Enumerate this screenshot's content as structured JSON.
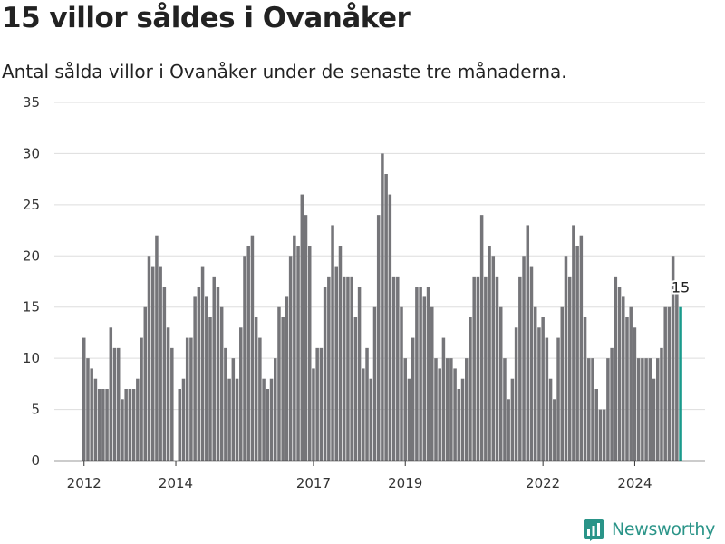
{
  "title": "15 villor såldes i Ovanåker",
  "subtitle": "Antal sålda villor i Ovanåker under de senaste tre månaderna.",
  "brand": "Newsworthy",
  "colors": {
    "bar": "#757579",
    "highlight": "#1a9a8c",
    "brand": "#2a9488",
    "grid": "#dddddd"
  },
  "chart_data": {
    "type": "bar",
    "title": "15 villor såldes i Ovanåker",
    "subtitle": "Antal sålda villor i Ovanåker under de senaste tre månaderna.",
    "xlabel": "",
    "ylabel": "",
    "ylim": [
      0,
      35
    ],
    "yticks": [
      0,
      5,
      10,
      15,
      20,
      25,
      30,
      35
    ],
    "x_ticks": [
      "2012",
      "2014",
      "2017",
      "2019",
      "2022",
      "2024"
    ],
    "grid": "horizontal",
    "start_month": "2012-01",
    "values": [
      12,
      10,
      9,
      8,
      7,
      7,
      7,
      13,
      11,
      11,
      6,
      7,
      7,
      7,
      8,
      12,
      15,
      20,
      19,
      22,
      19,
      17,
      13,
      11,
      null,
      7,
      8,
      12,
      12,
      16,
      17,
      19,
      16,
      14,
      18,
      17,
      15,
      11,
      8,
      10,
      8,
      13,
      20,
      21,
      22,
      14,
      12,
      8,
      7,
      8,
      10,
      15,
      14,
      16,
      20,
      22,
      21,
      26,
      24,
      21,
      9,
      11,
      11,
      17,
      18,
      23,
      19,
      21,
      18,
      18,
      18,
      14,
      17,
      9,
      11,
      8,
      15,
      24,
      30,
      28,
      26,
      18,
      18,
      15,
      10,
      8,
      12,
      17,
      17,
      16,
      17,
      15,
      10,
      9,
      12,
      10,
      10,
      9,
      7,
      8,
      10,
      14,
      18,
      18,
      24,
      18,
      21,
      20,
      18,
      15,
      10,
      6,
      8,
      13,
      18,
      20,
      23,
      19,
      15,
      13,
      14,
      12,
      8,
      6,
      12,
      15,
      20,
      18,
      23,
      21,
      22,
      14,
      10,
      10,
      7,
      5,
      5,
      10,
      11,
      18,
      17,
      16,
      14,
      15,
      13,
      10,
      10,
      10,
      10,
      8,
      10,
      11,
      15,
      15,
      20,
      17,
      15
    ],
    "highlight": {
      "index": 156,
      "value": 15,
      "label": "15"
    }
  }
}
